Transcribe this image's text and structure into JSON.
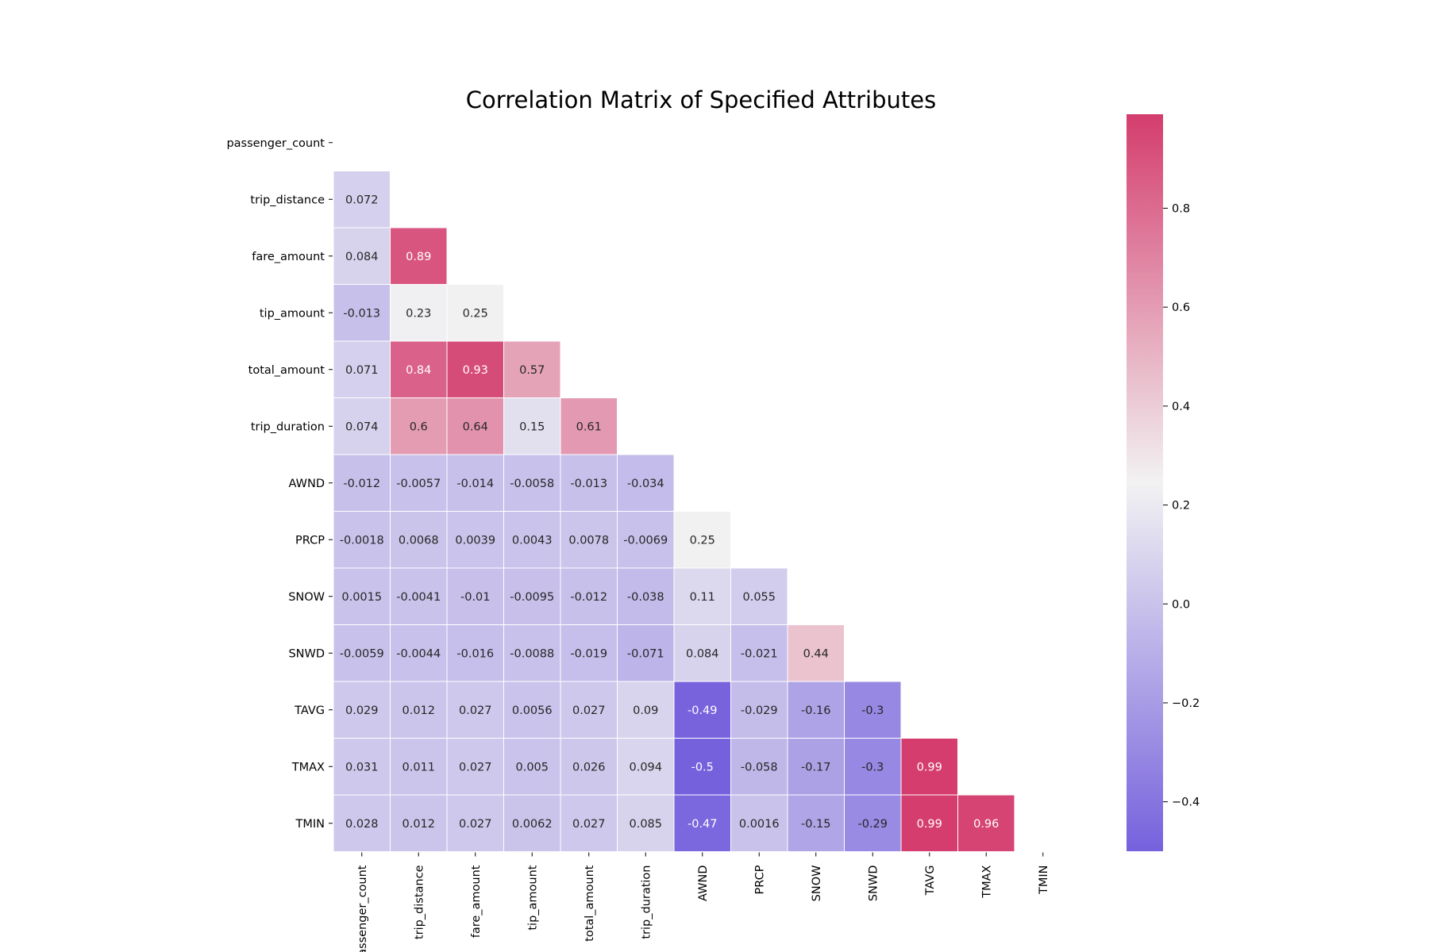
{
  "chart_data": {
    "type": "heatmap",
    "title": "Correlation Matrix of Specified Attributes",
    "variables": [
      "passenger_count",
      "trip_distance",
      "fare_amount",
      "tip_amount",
      "total_amount",
      "trip_duration",
      "AWND",
      "PRCP",
      "SNOW",
      "SNWD",
      "TAVG",
      "TMAX",
      "TMIN"
    ],
    "mask": "upper-triangle-including-diagonal",
    "lower_triangle": [
      [],
      [
        "0.072"
      ],
      [
        "0.084",
        "0.89"
      ],
      [
        "-0.013",
        "0.23",
        "0.25"
      ],
      [
        "0.071",
        "0.84",
        "0.93",
        "0.57"
      ],
      [
        "0.074",
        "0.6",
        "0.64",
        "0.15",
        "0.61"
      ],
      [
        "-0.012",
        "-0.0057",
        "-0.014",
        "-0.0058",
        "-0.013",
        "-0.034"
      ],
      [
        "-0.0018",
        "0.0068",
        "0.0039",
        "0.0043",
        "0.0078",
        "-0.0069",
        "0.25"
      ],
      [
        "0.0015",
        "-0.0041",
        "-0.01",
        "-0.0095",
        "-0.012",
        "-0.038",
        "0.11",
        "0.055"
      ],
      [
        "-0.0059",
        "-0.0044",
        "-0.016",
        "-0.0088",
        "-0.019",
        "-0.071",
        "0.084",
        "-0.021",
        "0.44"
      ],
      [
        "0.029",
        "0.012",
        "0.027",
        "0.0056",
        "0.027",
        "0.09",
        "-0.49",
        "-0.029",
        "-0.16",
        "-0.3"
      ],
      [
        "0.031",
        "0.011",
        "0.027",
        "0.005",
        "0.026",
        "0.094",
        "-0.5",
        "-0.058",
        "-0.17",
        "-0.3",
        "0.99"
      ],
      [
        "0.028",
        "0.012",
        "0.027",
        "0.0062",
        "0.027",
        "0.085",
        "-0.47",
        "0.0016",
        "-0.15",
        "-0.29",
        "0.99",
        "0.96"
      ]
    ],
    "colorbar": {
      "vmin": -0.5,
      "vmax": 0.99,
      "ticks": [
        "0.8",
        "0.6",
        "0.4",
        "0.2",
        "0.0",
        "−0.2",
        "−0.4"
      ],
      "tick_values": [
        0.8,
        0.6,
        0.4,
        0.2,
        0.0,
        -0.2,
        -0.4
      ],
      "colors": {
        "low": "#7661dd",
        "mid": "#f2f2f2",
        "high": "#d43d6e"
      }
    },
    "grid": false,
    "legend": "colorbar-right"
  }
}
